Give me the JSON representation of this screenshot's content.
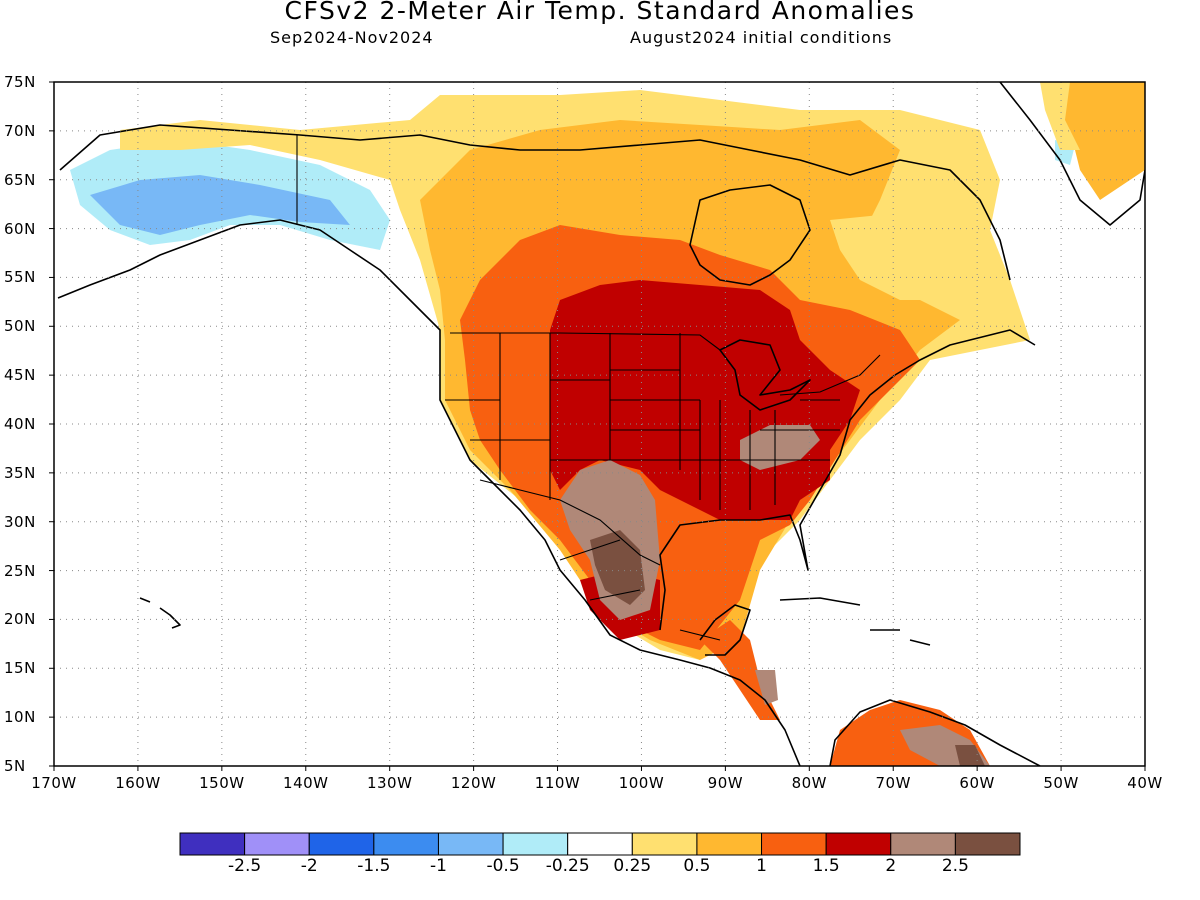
{
  "title": "CFSv2 2-Meter Air Temp. Standard Anomalies",
  "period": "Sep2024-Nov2024",
  "initial_conditions": "August2024 initial conditions",
  "lat_labels": [
    "75N",
    "70N",
    "65N",
    "60N",
    "55N",
    "50N",
    "45N",
    "40N",
    "35N",
    "30N",
    "25N",
    "20N",
    "15N",
    "10N",
    "5N"
  ],
  "lon_labels": [
    "170W",
    "160W",
    "150W",
    "140W",
    "130W",
    "120W",
    "110W",
    "100W",
    "90W",
    "80W",
    "70W",
    "60W",
    "50W",
    "40W"
  ],
  "colorbar": {
    "colors": [
      "#3f2fbf",
      "#a090f8",
      "#1f64e8",
      "#3c8cf0",
      "#78b8f6",
      "#b0ecf8",
      "#ffffff",
      "#ffe070",
      "#ffb830",
      "#f86010",
      "#c00000",
      "#b08878",
      "#7a5040"
    ],
    "labels": [
      "-2.5",
      "-2",
      "-1.5",
      "-1",
      "-0.5",
      "-0.25",
      "0.25",
      "0.5",
      "1",
      "1.5",
      "2",
      "2.5"
    ]
  },
  "map_colors": {
    "neg_light": "#b0ecf8",
    "neg_mid": "#78b8f6",
    "pos_light": "#ffe070",
    "pos_mid": "#ffb830",
    "pos_high": "#f86010",
    "pos_vhigh": "#c00000",
    "pos_ext": "#b08878",
    "pos_max": "#7a5040"
  }
}
